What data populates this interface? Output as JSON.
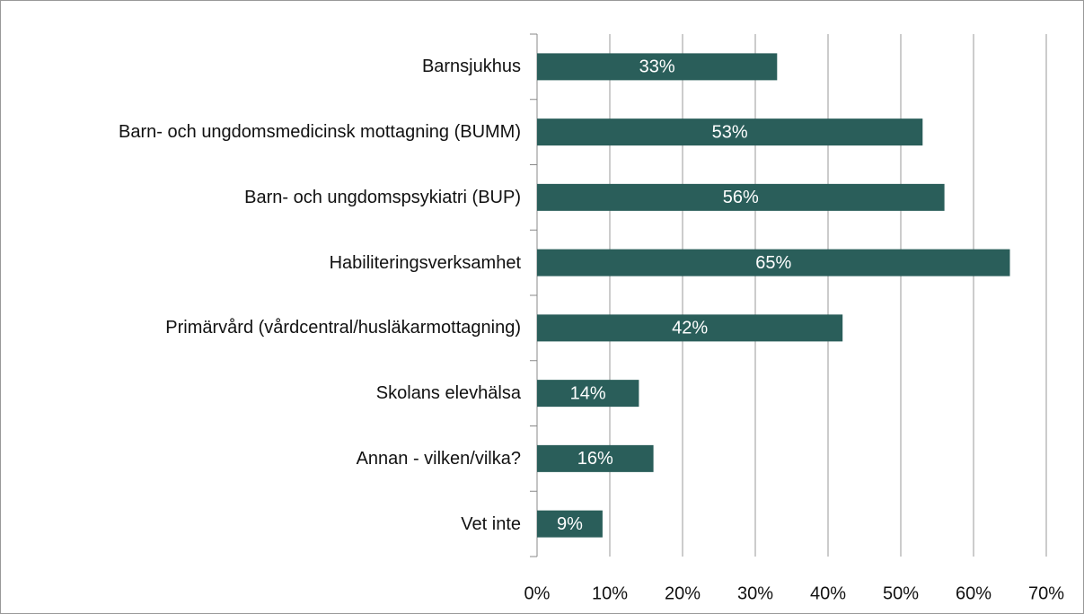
{
  "chart_data": {
    "type": "bar",
    "orientation": "horizontal",
    "categories": [
      "Barnsjukhus",
      "Barn- och ungdomsmedicinsk mottagning (BUMM)",
      "Barn- och ungdomspsykiatri (BUP)",
      "Habiliteringsverksamhet",
      "Primärvård (vårdcentral/husläkarmottagning)",
      "Skolans elevhälsa",
      "Annan - vilken/vilka?",
      "Vet inte"
    ],
    "values": [
      33,
      53,
      56,
      65,
      42,
      14,
      16,
      9
    ],
    "value_labels": [
      "33%",
      "53%",
      "56%",
      "65%",
      "42%",
      "14%",
      "16%",
      "9%"
    ],
    "color": "#2a5e5a",
    "xlim": [
      0,
      70
    ],
    "xticks": [
      {
        "value": 0,
        "label": "0%"
      },
      {
        "value": 10,
        "label": "10%"
      },
      {
        "value": 20,
        "label": "20%"
      },
      {
        "value": 30,
        "label": "30%"
      },
      {
        "value": 40,
        "label": "40%"
      },
      {
        "value": 50,
        "label": "50%"
      },
      {
        "value": 60,
        "label": "60%"
      },
      {
        "value": 70,
        "label": "70%"
      }
    ],
    "grid": true
  }
}
